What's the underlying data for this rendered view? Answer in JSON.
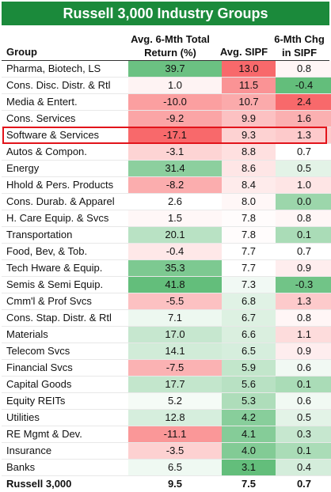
{
  "title": "Russell 3,000 Industry Groups",
  "headers": {
    "group": "Group",
    "return_line1": "Avg. 6-Mth Total",
    "return_line2": "Return (%)",
    "sipf": "Avg. SIPF",
    "chg_line1": "6-Mth Chg",
    "chg_line2": "in SIPF"
  },
  "highlighted_row": "Software & Services",
  "colors": {
    "title_bg": "#1b8a3b",
    "positive": "#63be7b",
    "negative": "#f8696b",
    "highlight_border": "#e2141b"
  },
  "chart_data": {
    "type": "table",
    "title": "Russell 3,000 Industry Groups",
    "columns": [
      "Group",
      "Avg. 6-Mth Total Return (%)",
      "Avg. SIPF",
      "6-Mth Chg in SIPF"
    ],
    "rows": [
      {
        "group": "Pharma, Biotech, LS",
        "ret": "39.7",
        "sipf": "13.0",
        "chg": "0.8"
      },
      {
        "group": "Cons. Disc. Distr. & Rtl",
        "ret": "1.0",
        "sipf": "11.5",
        "chg": "-0.4"
      },
      {
        "group": "Media & Entert.",
        "ret": "-10.0",
        "sipf": "10.7",
        "chg": "2.4"
      },
      {
        "group": "Cons. Services",
        "ret": "-9.2",
        "sipf": "9.9",
        "chg": "1.6"
      },
      {
        "group": "Software & Services",
        "ret": "-17.1",
        "sipf": "9.3",
        "chg": "1.3"
      },
      {
        "group": "Autos & Compon.",
        "ret": "-3.1",
        "sipf": "8.8",
        "chg": "0.7"
      },
      {
        "group": "Energy",
        "ret": "31.4",
        "sipf": "8.6",
        "chg": "0.5"
      },
      {
        "group": "Hhold & Pers. Products",
        "ret": "-8.2",
        "sipf": "8.4",
        "chg": "1.0"
      },
      {
        "group": "Cons. Durab. & Apparel",
        "ret": "2.6",
        "sipf": "8.0",
        "chg": "0.0"
      },
      {
        "group": "H. Care Equip. & Svcs",
        "ret": "1.5",
        "sipf": "7.8",
        "chg": "0.8"
      },
      {
        "group": "Transportation",
        "ret": "20.1",
        "sipf": "7.8",
        "chg": "0.1"
      },
      {
        "group": "Food, Bev, & Tob.",
        "ret": "-0.4",
        "sipf": "7.7",
        "chg": "0.7"
      },
      {
        "group": "Tech Hware & Equip.",
        "ret": "35.3",
        "sipf": "7.7",
        "chg": "0.9"
      },
      {
        "group": "Semis & Semi Equip.",
        "ret": "41.8",
        "sipf": "7.3",
        "chg": "-0.3"
      },
      {
        "group": "Cmm'l & Prof Svcs",
        "ret": "-5.5",
        "sipf": "6.8",
        "chg": "1.3"
      },
      {
        "group": "Cons. Stap. Distr. & Rtl",
        "ret": "7.1",
        "sipf": "6.7",
        "chg": "0.8"
      },
      {
        "group": "Materials",
        "ret": "17.0",
        "sipf": "6.6",
        "chg": "1.1"
      },
      {
        "group": "Telecom Svcs",
        "ret": "14.1",
        "sipf": "6.5",
        "chg": "0.9"
      },
      {
        "group": "Financial Svcs",
        "ret": "-7.5",
        "sipf": "5.9",
        "chg": "0.6"
      },
      {
        "group": "Capital Goods",
        "ret": "17.7",
        "sipf": "5.6",
        "chg": "0.1"
      },
      {
        "group": "Equity REITs",
        "ret": "5.2",
        "sipf": "5.3",
        "chg": "0.6"
      },
      {
        "group": "Utilities",
        "ret": "12.8",
        "sipf": "4.2",
        "chg": "0.5"
      },
      {
        "group": "RE Mgmt & Dev.",
        "ret": "-11.1",
        "sipf": "4.1",
        "chg": "0.3"
      },
      {
        "group": "Insurance",
        "ret": "-3.5",
        "sipf": "4.0",
        "chg": "0.1"
      },
      {
        "group": "Banks",
        "ret": "6.5",
        "sipf": "3.1",
        "chg": "0.4"
      }
    ],
    "total": {
      "group": "Russell 3,000",
      "ret": "9.5",
      "sipf": "7.5",
      "chg": "0.7"
    }
  }
}
